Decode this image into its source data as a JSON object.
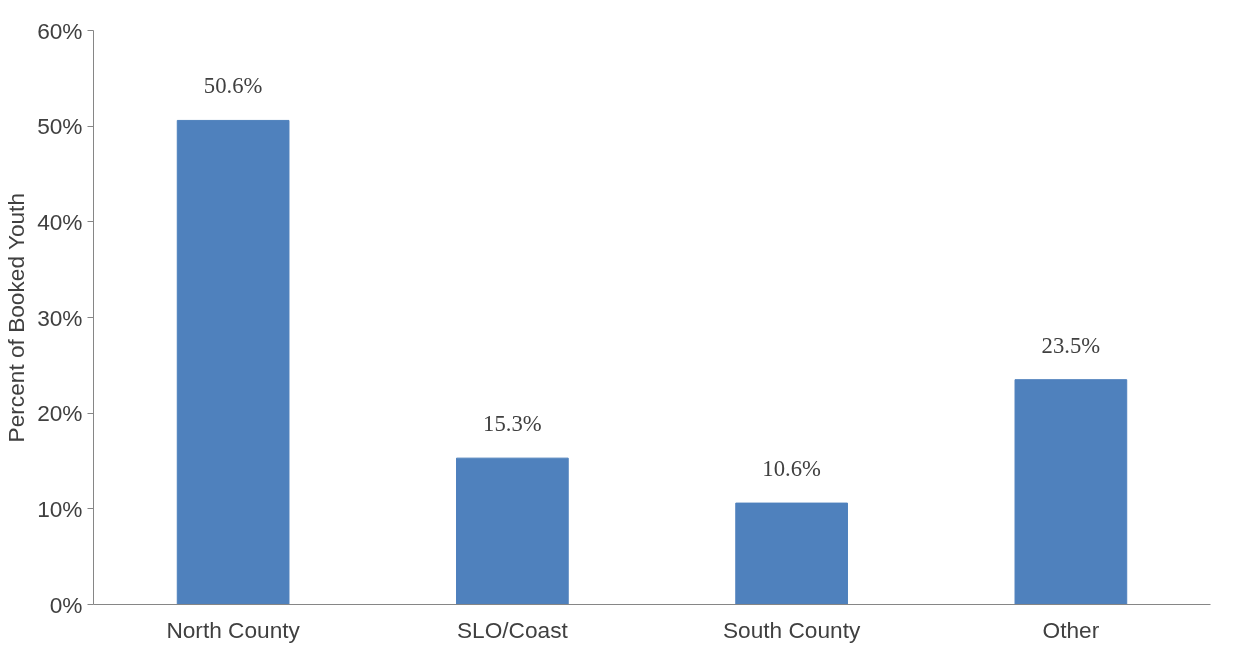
{
  "chart_data": {
    "type": "bar",
    "ylabel": "Percent of Booked Youth",
    "categories": [
      "North County",
      "SLO/Coast",
      "South County",
      "Other"
    ],
    "values": [
      50.6,
      15.3,
      10.6,
      23.5
    ],
    "value_labels": [
      "50.6%",
      "15.3%",
      "10.6%",
      "23.5%"
    ],
    "color": "#4f81bd",
    "ylim": [
      0,
      60
    ],
    "yticks": [
      {
        "value": 0,
        "label": "0%"
      },
      {
        "value": 10,
        "label": "10%"
      },
      {
        "value": 20,
        "label": "20%"
      },
      {
        "value": 30,
        "label": "30%"
      },
      {
        "value": 40,
        "label": "40%"
      },
      {
        "value": 50,
        "label": "50%"
      },
      {
        "value": 60,
        "label": "60%"
      }
    ],
    "grid": false
  }
}
